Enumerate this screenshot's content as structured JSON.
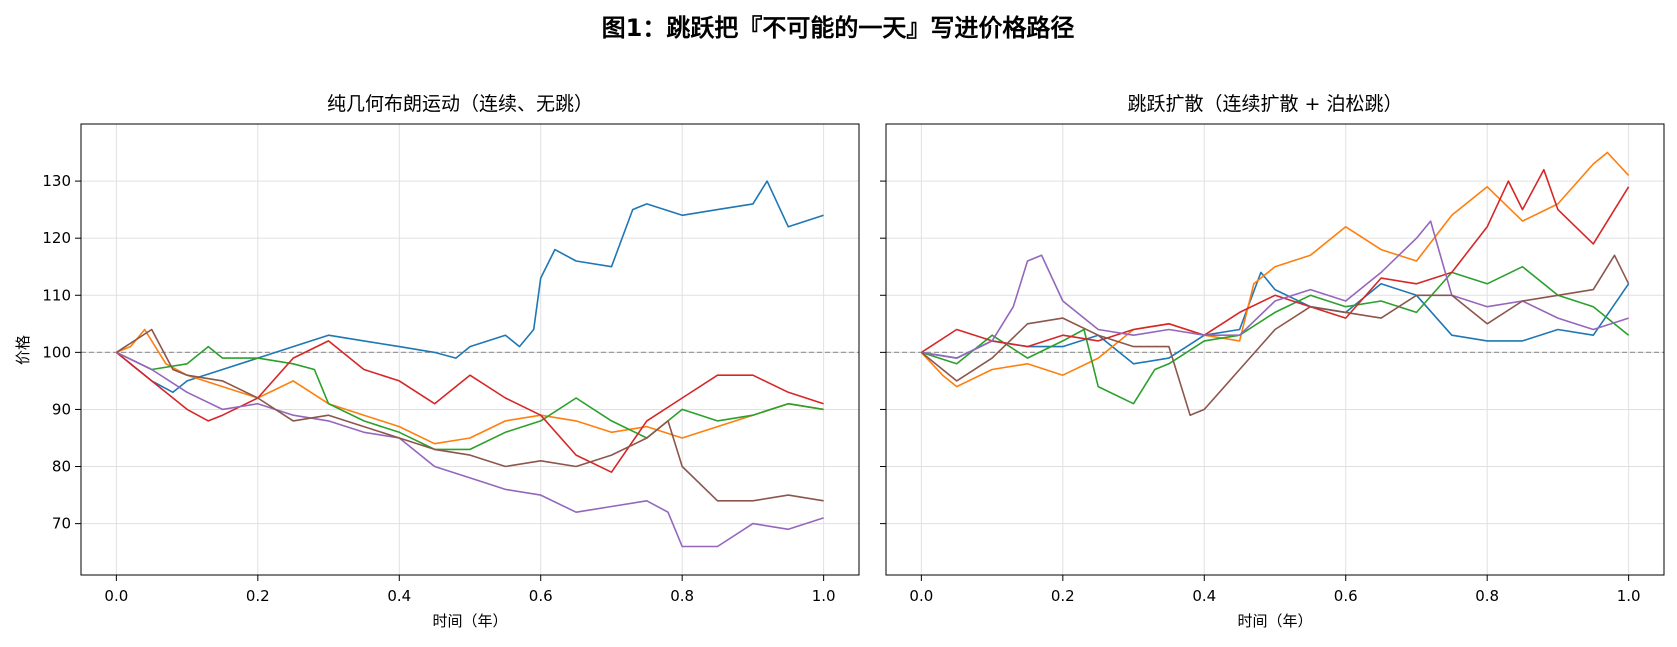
{
  "figure_title": "图1：跳跃把『不可能的一天』写进价格路径",
  "chart_data": [
    {
      "type": "line",
      "title": "纯几何布朗运动（连续、无跳）",
      "xlabel": "时间（年）",
      "ylabel": "价格",
      "xlim": [
        -0.05,
        1.05
      ],
      "ylim": [
        61,
        140
      ],
      "xticks": [
        "0.0",
        "0.2",
        "0.4",
        "0.6",
        "0.8",
        "1.0"
      ],
      "yticks": [
        "70",
        "80",
        "90",
        "100",
        "110",
        "120",
        "130"
      ],
      "reference_line": {
        "y": 100,
        "style": "dashed",
        "color": "#999999"
      },
      "grid": true,
      "series": [
        {
          "color": "#1f77b4",
          "x": [
            0,
            0.03,
            0.05,
            0.08,
            0.1,
            0.15,
            0.2,
            0.25,
            0.3,
            0.35,
            0.4,
            0.45,
            0.48,
            0.5,
            0.55,
            0.57,
            0.59,
            0.6,
            0.62,
            0.65,
            0.7,
            0.73,
            0.75,
            0.8,
            0.85,
            0.9,
            0.92,
            0.95,
            1.0
          ],
          "values": [
            100,
            97,
            95,
            93,
            95,
            97,
            99,
            101,
            103,
            102,
            101,
            100,
            99,
            101,
            103,
            101,
            104,
            113,
            118,
            116,
            115,
            125,
            126,
            124,
            125,
            126,
            130,
            122,
            124
          ]
        },
        {
          "color": "#ff7f0e",
          "x": [
            0,
            0.02,
            0.04,
            0.07,
            0.1,
            0.15,
            0.2,
            0.25,
            0.3,
            0.35,
            0.4,
            0.45,
            0.5,
            0.55,
            0.6,
            0.65,
            0.7,
            0.75,
            0.8,
            0.85,
            0.9,
            0.95,
            1.0
          ],
          "values": [
            100,
            101,
            104,
            98,
            96,
            94,
            92,
            95,
            91,
            89,
            87,
            84,
            85,
            88,
            89,
            88,
            86,
            87,
            85,
            87,
            89,
            91,
            90
          ]
        },
        {
          "color": "#2ca02c",
          "x": [
            0,
            0.05,
            0.1,
            0.13,
            0.15,
            0.2,
            0.25,
            0.28,
            0.3,
            0.35,
            0.4,
            0.45,
            0.5,
            0.55,
            0.6,
            0.65,
            0.7,
            0.75,
            0.8,
            0.85,
            0.9,
            0.95,
            1.0
          ],
          "values": [
            100,
            97,
            98,
            101,
            99,
            99,
            98,
            97,
            91,
            88,
            86,
            83,
            83,
            86,
            88,
            92,
            88,
            85,
            90,
            88,
            89,
            91,
            90
          ]
        },
        {
          "color": "#d62728",
          "x": [
            0,
            0.05,
            0.1,
            0.13,
            0.15,
            0.2,
            0.25,
            0.3,
            0.35,
            0.4,
            0.45,
            0.5,
            0.55,
            0.6,
            0.65,
            0.7,
            0.75,
            0.8,
            0.85,
            0.9,
            0.95,
            1.0
          ],
          "values": [
            100,
            95,
            90,
            88,
            89,
            92,
            99,
            102,
            97,
            95,
            91,
            96,
            92,
            89,
            82,
            79,
            88,
            92,
            96,
            96,
            93,
            91
          ]
        },
        {
          "color": "#9467bd",
          "x": [
            0,
            0.05,
            0.1,
            0.15,
            0.2,
            0.25,
            0.3,
            0.35,
            0.4,
            0.45,
            0.5,
            0.55,
            0.6,
            0.65,
            0.7,
            0.75,
            0.78,
            0.8,
            0.85,
            0.9,
            0.95,
            1.0
          ],
          "values": [
            100,
            97,
            93,
            90,
            91,
            89,
            88,
            86,
            85,
            80,
            78,
            76,
            75,
            72,
            73,
            74,
            72,
            66,
            66,
            70,
            69,
            71
          ]
        },
        {
          "color": "#8c564b",
          "x": [
            0,
            0.05,
            0.08,
            0.1,
            0.15,
            0.2,
            0.25,
            0.3,
            0.35,
            0.4,
            0.45,
            0.5,
            0.55,
            0.6,
            0.65,
            0.7,
            0.75,
            0.78,
            0.8,
            0.85,
            0.9,
            0.95,
            1.0
          ],
          "values": [
            100,
            104,
            97,
            96,
            95,
            92,
            88,
            89,
            87,
            85,
            83,
            82,
            80,
            81,
            80,
            82,
            85,
            88,
            80,
            74,
            74,
            75,
            74
          ]
        }
      ]
    },
    {
      "type": "line",
      "title": "跳跃扩散（连续扩散 + 泊松跳）",
      "xlabel": "时间（年）",
      "ylabel": "",
      "xlim": [
        -0.05,
        1.05
      ],
      "ylim": [
        61,
        140
      ],
      "xticks": [
        "0.0",
        "0.2",
        "0.4",
        "0.6",
        "0.8",
        "1.0"
      ],
      "yticks": [],
      "reference_line": {
        "y": 100,
        "style": "dashed",
        "color": "#999999"
      },
      "grid": true,
      "series": [
        {
          "color": "#1f77b4",
          "x": [
            0,
            0.05,
            0.1,
            0.15,
            0.2,
            0.25,
            0.3,
            0.35,
            0.4,
            0.45,
            0.48,
            0.5,
            0.55,
            0.6,
            0.65,
            0.7,
            0.75,
            0.8,
            0.85,
            0.9,
            0.95,
            1.0
          ],
          "values": [
            100,
            99,
            102,
            101,
            101,
            103,
            98,
            99,
            103,
            104,
            114,
            111,
            108,
            107,
            112,
            110,
            103,
            102,
            102,
            104,
            103,
            112
          ]
        },
        {
          "color": "#ff7f0e",
          "x": [
            0,
            0.03,
            0.05,
            0.1,
            0.15,
            0.2,
            0.25,
            0.3,
            0.35,
            0.4,
            0.45,
            0.47,
            0.5,
            0.55,
            0.6,
            0.65,
            0.7,
            0.75,
            0.8,
            0.85,
            0.9,
            0.95,
            0.97,
            1.0
          ],
          "values": [
            100,
            96,
            94,
            97,
            98,
            96,
            99,
            104,
            105,
            103,
            102,
            112,
            115,
            117,
            122,
            118,
            116,
            124,
            129,
            123,
            126,
            133,
            135,
            131
          ]
        },
        {
          "color": "#2ca02c",
          "x": [
            0,
            0.05,
            0.1,
            0.15,
            0.2,
            0.23,
            0.25,
            0.3,
            0.33,
            0.35,
            0.4,
            0.45,
            0.5,
            0.55,
            0.6,
            0.65,
            0.7,
            0.75,
            0.8,
            0.85,
            0.9,
            0.95,
            1.0
          ],
          "values": [
            100,
            98,
            103,
            99,
            102,
            104,
            94,
            91,
            97,
            98,
            102,
            103,
            107,
            110,
            108,
            109,
            107,
            114,
            112,
            115,
            110,
            108,
            103
          ]
        },
        {
          "color": "#d62728",
          "x": [
            0,
            0.05,
            0.1,
            0.15,
            0.2,
            0.25,
            0.3,
            0.35,
            0.4,
            0.45,
            0.5,
            0.55,
            0.6,
            0.65,
            0.7,
            0.75,
            0.8,
            0.83,
            0.85,
            0.88,
            0.9,
            0.95,
            1.0
          ],
          "values": [
            100,
            104,
            102,
            101,
            103,
            102,
            104,
            105,
            103,
            107,
            110,
            108,
            106,
            113,
            112,
            114,
            122,
            130,
            125,
            132,
            125,
            119,
            129
          ]
        },
        {
          "color": "#9467bd",
          "x": [
            0,
            0.05,
            0.1,
            0.13,
            0.15,
            0.17,
            0.2,
            0.25,
            0.3,
            0.35,
            0.4,
            0.45,
            0.5,
            0.55,
            0.6,
            0.65,
            0.7,
            0.72,
            0.75,
            0.8,
            0.85,
            0.9,
            0.95,
            1.0
          ],
          "values": [
            100,
            99,
            102,
            108,
            116,
            117,
            109,
            104,
            103,
            104,
            103,
            103,
            109,
            111,
            109,
            114,
            120,
            123,
            110,
            108,
            109,
            106,
            104,
            106
          ]
        },
        {
          "color": "#8c564b",
          "x": [
            0,
            0.05,
            0.1,
            0.15,
            0.2,
            0.25,
            0.3,
            0.35,
            0.38,
            0.4,
            0.45,
            0.5,
            0.55,
            0.6,
            0.65,
            0.7,
            0.75,
            0.8,
            0.85,
            0.9,
            0.95,
            0.98,
            1.0
          ],
          "values": [
            100,
            95,
            99,
            105,
            106,
            103,
            101,
            101,
            89,
            90,
            97,
            104,
            108,
            107,
            106,
            110,
            110,
            105,
            109,
            110,
            111,
            117,
            112
          ]
        }
      ]
    }
  ]
}
